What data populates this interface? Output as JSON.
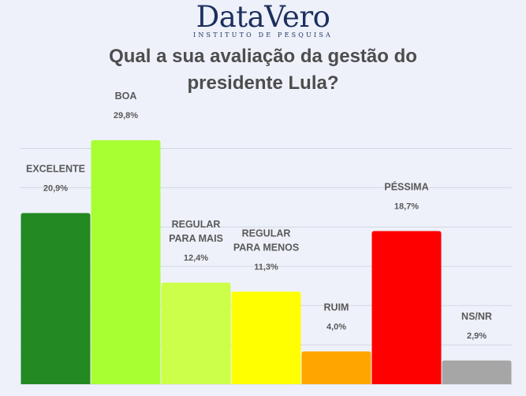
{
  "header": {
    "logo_text": "DataVero",
    "logo_subtitle": "INSTITUTO DE PESQUISA"
  },
  "chart_data": {
    "type": "bar",
    "title": "Qual a sua avaliação da gestão do presidente Lula?",
    "title_lines": [
      "Qual a sua avaliação da gestão do",
      "presidente Lula?"
    ],
    "categories": [
      [
        "EXCELENTE"
      ],
      [
        "BOA"
      ],
      [
        "REGULAR",
        "PARA MAIS"
      ],
      [
        "REGULAR",
        "PARA MENOS"
      ],
      [
        "RUIM"
      ],
      [
        "PÉSSIMA"
      ],
      [
        "NS/NR"
      ]
    ],
    "values": [
      20.9,
      29.8,
      12.4,
      11.3,
      4.0,
      18.7,
      2.9
    ],
    "value_labels": [
      "20,9%",
      "29,8%",
      "12,4%",
      "11,3%",
      "4,0%",
      "18,7%",
      "2,9%"
    ],
    "colors": [
      "#238a23",
      "#a8ff32",
      "#ccff4a",
      "#ffff00",
      "#ffa500",
      "#ff0000",
      "#a6a6a6"
    ],
    "gridlines": true,
    "ylim": [
      0,
      30
    ],
    "xlabel": "",
    "ylabel": ""
  }
}
